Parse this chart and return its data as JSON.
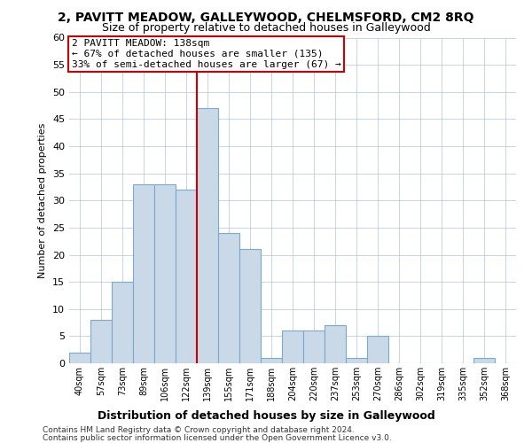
{
  "title": "2, PAVITT MEADOW, GALLEYWOOD, CHELMSFORD, CM2 8RQ",
  "subtitle": "Size of property relative to detached houses in Galleywood",
  "xlabel": "Distribution of detached houses by size in Galleywood",
  "ylabel": "Number of detached properties",
  "bar_labels": [
    "40sqm",
    "57sqm",
    "73sqm",
    "89sqm",
    "106sqm",
    "122sqm",
    "139sqm",
    "155sqm",
    "171sqm",
    "188sqm",
    "204sqm",
    "220sqm",
    "237sqm",
    "253sqm",
    "270sqm",
    "286sqm",
    "302sqm",
    "319sqm",
    "335sqm",
    "352sqm",
    "368sqm"
  ],
  "bar_values": [
    2,
    8,
    15,
    33,
    33,
    32,
    47,
    24,
    21,
    1,
    6,
    6,
    7,
    1,
    5,
    0,
    0,
    0,
    0,
    1,
    0
  ],
  "bar_color": "#c9d9e8",
  "bar_edge_color": "#7aabcf",
  "grid_color": "#b0c4de",
  "annotation_box_text_line1": "2 PAVITT MEADOW: 138sqm",
  "annotation_box_text_line2": "← 67% of detached houses are smaller (135)",
  "annotation_box_text_line3": "33% of semi-detached houses are larger (67) →",
  "annotation_line_color": "#cc0000",
  "annotation_box_edge_color": "#cc0000",
  "ylim": [
    0,
    60
  ],
  "yticks": [
    0,
    5,
    10,
    15,
    20,
    25,
    30,
    35,
    40,
    45,
    50,
    55,
    60
  ],
  "footnote1": "Contains HM Land Registry data © Crown copyright and database right 2024.",
  "footnote2": "Contains public sector information licensed under the Open Government Licence v3.0.",
  "bg_color": "#ffffff",
  "title_fontsize": 10,
  "subtitle_fontsize": 9,
  "annotation_fontsize": 8,
  "ylabel_fontsize": 8,
  "xlabel_fontsize": 9,
  "xtick_fontsize": 7,
  "ytick_fontsize": 8,
  "footnote_fontsize": 6.5
}
